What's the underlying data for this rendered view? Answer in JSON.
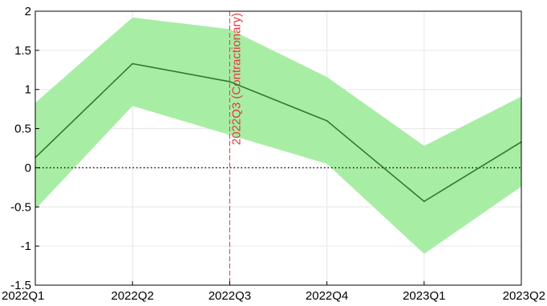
{
  "chart_data": {
    "type": "line",
    "categories": [
      "2022Q1",
      "2022Q2",
      "2022Q3",
      "2022Q4",
      "2023Q1",
      "2023Q2"
    ],
    "series": [
      {
        "values": [
          0.13,
          1.33,
          1.1,
          0.6,
          -0.43,
          0.33
        ],
        "lower": [
          -0.53,
          0.79,
          0.42,
          0.05,
          -1.1,
          -0.24
        ],
        "upper": [
          0.83,
          1.92,
          1.77,
          1.16,
          0.28,
          0.91
        ]
      }
    ],
    "ylim": [
      -1.5,
      2
    ],
    "yticks": [
      -1.5,
      -1,
      -0.5,
      0,
      0.5,
      1,
      1.5,
      2
    ],
    "ytick_labels": [
      "-1.5",
      "-1",
      "-0.5",
      "0",
      "0.5",
      "1",
      "1.5",
      "2"
    ],
    "grid": true,
    "zero_line": true,
    "annotation": {
      "category": "2022Q3",
      "label": "2022Q3 (Contractionary)"
    },
    "colors": {
      "band": "#a8eda4",
      "line": "#2c7a2c",
      "marker_line": "#e0393d",
      "grid": "#e6e6e6"
    }
  }
}
